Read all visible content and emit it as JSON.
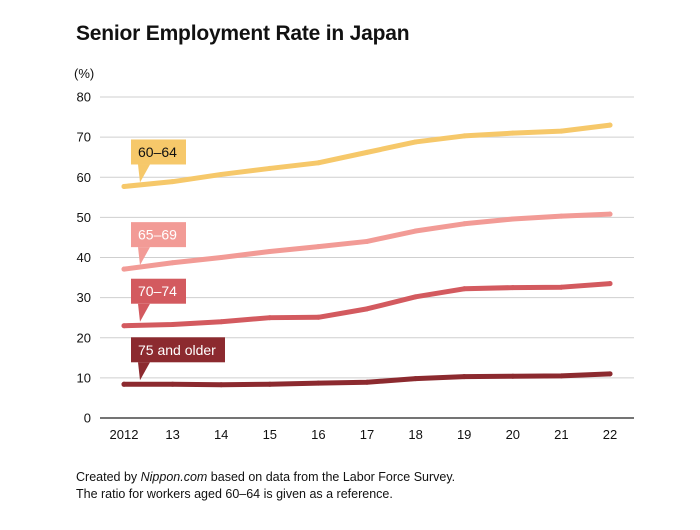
{
  "chart_data": {
    "type": "line",
    "title": "Senior Employment Rate in Japan",
    "ylabel": "(%)",
    "xlabel": "",
    "ylim": [
      0,
      80
    ],
    "yticks": [
      0,
      10,
      20,
      30,
      40,
      50,
      60,
      70,
      80
    ],
    "categories": [
      "2012",
      "13",
      "14",
      "15",
      "16",
      "17",
      "18",
      "19",
      "20",
      "21",
      "22"
    ],
    "series": [
      {
        "name": "60–64",
        "color": "#f6c86a",
        "label_text_color": "#111111",
        "values": [
          57.7,
          58.9,
          60.7,
          62.2,
          63.6,
          66.2,
          68.8,
          70.3,
          71.0,
          71.5,
          73.0
        ]
      },
      {
        "name": "65–69",
        "color": "#f29b96",
        "label_text_color": "#ffffff",
        "values": [
          37.1,
          38.7,
          40.0,
          41.5,
          42.7,
          44.0,
          46.6,
          48.4,
          49.6,
          50.3,
          50.8
        ]
      },
      {
        "name": "70–74",
        "color": "#d35a5f",
        "label_text_color": "#ffffff",
        "values": [
          23.0,
          23.3,
          24.0,
          25.0,
          25.1,
          27.2,
          30.2,
          32.2,
          32.5,
          32.6,
          33.5
        ]
      },
      {
        "name": "75 and older",
        "color": "#8c2a2f",
        "label_text_color": "#ffffff",
        "values": [
          8.4,
          8.4,
          8.3,
          8.4,
          8.7,
          8.9,
          9.8,
          10.3,
          10.4,
          10.5,
          11.0
        ]
      }
    ],
    "grid": true
  },
  "footer": {
    "line1_before": "Created by ",
    "line1_source": "Nippon.com",
    "line1_after": " based on data from the Labor Force Survey.",
    "line2": "The ratio for workers aged 60–64 is given as a reference."
  }
}
